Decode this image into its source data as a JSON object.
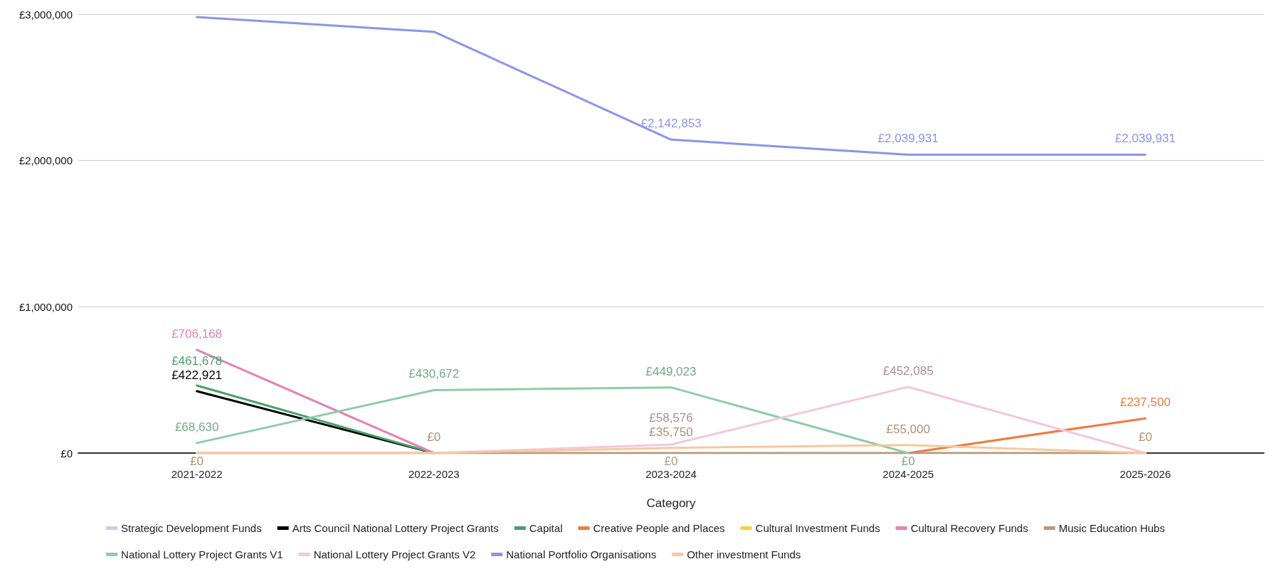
{
  "chart_data": {
    "type": "line",
    "xlabel": "Category",
    "categories": [
      "2021-2022",
      "2022-2023",
      "2023-2024",
      "2024-2025",
      "2025-2026"
    ],
    "ylim": [
      0,
      3000000
    ],
    "yticks": [
      {
        "value": 0,
        "label": "£0"
      },
      {
        "value": 1000000,
        "label": "£1,000,000"
      },
      {
        "value": 2000000,
        "label": "£2,000,000"
      },
      {
        "value": 3000000,
        "label": "£3,000,000"
      }
    ],
    "grid": "y",
    "legend": "bottom",
    "marker": "none",
    "line_style": "solid",
    "series": [
      {
        "name": "Strategic Development Funds",
        "color": "#c9cdf2",
        "values": [
          null,
          null,
          null,
          null,
          null
        ]
      },
      {
        "name": "Arts Council National Lottery Project Grants",
        "color": "#000000",
        "values": [
          422921,
          0,
          null,
          null,
          null
        ],
        "value_labels": [
          "£422,921",
          null,
          null,
          null,
          null
        ]
      },
      {
        "name": "Capital",
        "color": "#4a9e6b",
        "values": [
          461678,
          0,
          null,
          null,
          null
        ],
        "value_labels": [
          "£461,678",
          null,
          null,
          null,
          null
        ]
      },
      {
        "name": "Creative People and Places",
        "color": "#f07a3e",
        "values": [
          null,
          null,
          null,
          0,
          237500
        ],
        "value_labels": [
          null,
          null,
          null,
          null,
          "£237,500"
        ]
      },
      {
        "name": "Cultural Investment Funds",
        "color": "#f9cf3a",
        "values": [
          null,
          null,
          null,
          null,
          null
        ]
      },
      {
        "name": "Cultural Recovery Funds",
        "color": "#e283b5",
        "values": [
          706168,
          0,
          null,
          null,
          null
        ],
        "value_labels": [
          "£706,168",
          null,
          null,
          null,
          null
        ]
      },
      {
        "name": "Music Education Hubs",
        "color": "#b59a7a",
        "values": [
          0,
          0,
          0,
          0,
          0
        ],
        "value_labels": [
          null,
          null,
          "£0",
          null,
          null
        ]
      },
      {
        "name": "National Lottery Project Grants V1",
        "color": "#8fcca7",
        "values": [
          68630,
          430672,
          449023,
          0,
          null
        ],
        "value_labels": [
          "£68,630",
          "£430,672",
          "£449,023",
          "£0",
          null
        ]
      },
      {
        "name": "National Lottery Project Grants V2",
        "color": "#f4c6dc",
        "values": [
          0,
          0,
          58576,
          452085,
          0
        ],
        "value_labels": [
          null,
          null,
          "£58,576",
          "£452,085",
          null
        ]
      },
      {
        "name": "National Portfolio Organisations",
        "color": "#8b94ec",
        "values": [
          2980000,
          2880000,
          2142853,
          2039931,
          2039931
        ],
        "value_labels": [
          null,
          null,
          "£2,142,853",
          "£2,039,931",
          "£2,039,931"
        ]
      },
      {
        "name": "Other investment Funds",
        "color": "#f6c89f",
        "values": [
          0,
          0,
          35750,
          55000,
          0
        ],
        "value_labels": [
          "£0",
          "£0",
          "£35,750",
          "£55,000",
          "£0"
        ]
      }
    ]
  }
}
